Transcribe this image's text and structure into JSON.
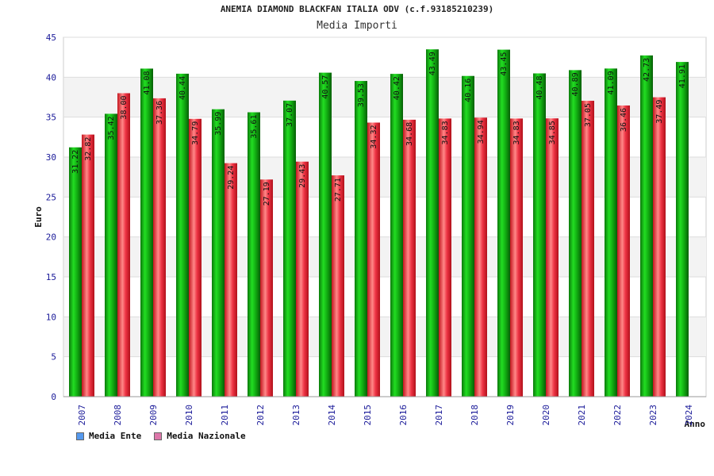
{
  "chart_data": {
    "type": "bar",
    "title": "ANEMIA DIAMOND BLACKFAN ITALIA ODV (c.f.93185210239)",
    "subtitle": "Media Importi",
    "ylabel": "Euro",
    "xlabel": "Anno",
    "ylim": [
      0,
      45
    ],
    "yticks": [
      0,
      5,
      10,
      15,
      20,
      25,
      30,
      35,
      40,
      45
    ],
    "grid": true,
    "legend_position": "bottom-left",
    "categories": [
      "2007",
      "2008",
      "2009",
      "2010",
      "2011",
      "2012",
      "2013",
      "2014",
      "2015",
      "2016",
      "2017",
      "2018",
      "2019",
      "2020",
      "2021",
      "2022",
      "2023",
      "2024"
    ],
    "series": [
      {
        "name": "Media Ente",
        "bar_color": "#11aa11",
        "legend_color": "#5599ee",
        "values": [
          31.22,
          35.42,
          41.08,
          40.44,
          35.99,
          35.61,
          37.07,
          40.57,
          39.53,
          40.42,
          43.49,
          40.16,
          43.45,
          40.48,
          40.89,
          41.09,
          42.73,
          41.91
        ]
      },
      {
        "name": "Media Nazionale",
        "bar_color": "#ee3344",
        "legend_color": "#dd77aa",
        "values": [
          32.82,
          38.0,
          37.36,
          34.79,
          29.24,
          27.19,
          29.43,
          27.71,
          34.32,
          34.68,
          34.83,
          34.94,
          34.83,
          34.85,
          37.05,
          36.46,
          37.49,
          null
        ]
      }
    ]
  }
}
